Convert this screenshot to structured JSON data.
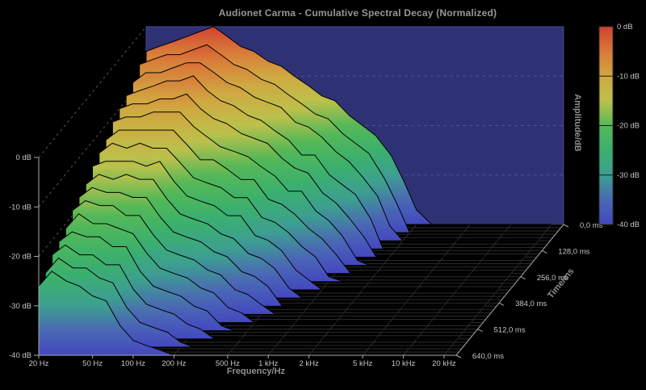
{
  "title": "Audionet Carma - Cumulative Spectral Decay (Normalized)",
  "colors": {
    "background": "#000000",
    "wall": "#2e3274",
    "wall_border": "#45488c",
    "wall_grid": "#565a9e",
    "side_grid": "#555555",
    "floor_grid": "#2b2b2b",
    "axis_line": "#a8a8a8",
    "tick_text": "#c6c6c6",
    "axis_title": "#8f8f8f",
    "slice_stroke": "#000000",
    "colorbar_divider": "#1a1a1a"
  },
  "axes": {
    "amplitude": {
      "label": "Amplitude/dB",
      "tick_labels": [
        "0 dB",
        "-10 dB",
        "-20 dB",
        "-30 dB",
        "-40 dB"
      ]
    },
    "frequency": {
      "label": "Frequency/Hz",
      "tick_labels": [
        "20 Hz",
        "50 Hz",
        "100 Hz",
        "200 Hz",
        "500 Hz",
        "1 kHz",
        "2 kHz",
        "5 kHz",
        "10 kHz",
        "20 kHz"
      ]
    },
    "time": {
      "label": "Time/ms",
      "tick_labels": [
        "0,0 ms",
        "128,0 ms",
        "256,0 ms",
        "384,0 ms",
        "512,0 ms",
        "640,0 ms"
      ]
    }
  },
  "colorbar": {
    "tick_labels": [
      "0 dB",
      "-10 dB",
      "-20 dB",
      "-30 dB",
      "-40 dB"
    ]
  },
  "chart_data": {
    "type": "surface",
    "subtype": "cumulative-spectral-decay-waterfall",
    "title": "Audionet Carma - Cumulative Spectral Decay (Normalized)",
    "xlabel": "Frequency/Hz",
    "ylabel": "Time/ms",
    "zlabel": "Amplitude/dB",
    "x_scale": "log",
    "xlim": [
      20,
      20000
    ],
    "ylim": [
      0,
      640
    ],
    "zlim": [
      -40,
      0
    ],
    "freq_ticks_hz": [
      20,
      50,
      100,
      200,
      500,
      1000,
      2000,
      5000,
      10000,
      20000
    ],
    "time_ticks_ms": [
      0,
      128,
      256,
      384,
      512,
      640
    ],
    "amp_ticks_db": [
      0,
      -10,
      -20,
      -30,
      -40
    ],
    "freq_hz": [
      20,
      25,
      32,
      40,
      50,
      63,
      80,
      100,
      125,
      160,
      200,
      250,
      320,
      400,
      500,
      640,
      800,
      1000,
      1300,
      1600,
      2000,
      2600,
      5000,
      20000
    ],
    "time_ms": [
      0,
      40,
      80,
      120,
      160,
      200,
      240,
      280,
      320,
      360,
      400,
      440,
      480,
      520,
      560,
      600,
      640
    ],
    "levels_db": [
      [
        -5,
        -4,
        -3,
        -2,
        -1,
        0,
        -2,
        -4,
        -5,
        -7,
        -8,
        -10,
        -12,
        -14,
        -15,
        -18,
        -20,
        -22,
        -26,
        -31,
        -37,
        -40,
        -40,
        -40
      ],
      [
        -6,
        -5,
        -4,
        -4,
        -3,
        -2,
        -4,
        -6,
        -7,
        -9,
        -10,
        -12,
        -14,
        -16,
        -17,
        -20,
        -22,
        -24,
        -29,
        -34,
        -40,
        -40,
        -40,
        -40
      ],
      [
        -8,
        -6,
        -6,
        -5,
        -4,
        -4,
        -6,
        -8,
        -9,
        -11,
        -12,
        -13,
        -16,
        -17,
        -19,
        -22,
        -24,
        -27,
        -31,
        -37,
        -40,
        -40,
        -40,
        -40
      ],
      [
        -9,
        -8,
        -7,
        -6,
        -6,
        -5,
        -8,
        -10,
        -11,
        -13,
        -14,
        -16,
        -18,
        -21,
        -21,
        -25,
        -27,
        -29,
        -34,
        -40,
        -40,
        -40,
        -40,
        -40
      ],
      [
        -10,
        -9,
        -9,
        -8,
        -8,
        -7,
        -10,
        -12,
        -13,
        -15,
        -16,
        -17,
        -20,
        -22,
        -23,
        -27,
        -29,
        -32,
        -36,
        -40,
        -40,
        -40,
        -40,
        -40
      ],
      [
        -11,
        -10,
        -10,
        -9,
        -9,
        -9,
        -12,
        -14,
        -16,
        -17,
        -18,
        -20,
        -22,
        -25,
        -25,
        -29,
        -31,
        -34,
        -39,
        -40,
        -40,
        -40,
        -40,
        -40
      ],
      [
        -13,
        -11,
        -11,
        -11,
        -11,
        -11,
        -14,
        -17,
        -17,
        -19,
        -21,
        -21,
        -25,
        -26,
        -28,
        -31,
        -33,
        -36,
        -40,
        -40,
        -40,
        -40,
        -40,
        -40
      ],
      [
        -14,
        -12,
        -13,
        -12,
        -13,
        -13,
        -16,
        -19,
        -20,
        -21,
        -23,
        -23,
        -27,
        -28,
        -30,
        -33,
        -35,
        -39,
        -40,
        -40,
        -40,
        -40,
        -40,
        -40
      ],
      [
        -15,
        -14,
        -14,
        -14,
        -15,
        -14,
        -18,
        -21,
        -22,
        -23,
        -25,
        -25,
        -29,
        -30,
        -32,
        -36,
        -38,
        -40,
        -40,
        -40,
        -40,
        -40,
        -40,
        -40
      ],
      [
        -17,
        -15,
        -16,
        -15,
        -16,
        -16,
        -20,
        -23,
        -24,
        -25,
        -27,
        -28,
        -31,
        -32,
        -34,
        -38,
        -40,
        -40,
        -40,
        -40,
        -40,
        -40,
        -40,
        -40
      ],
      [
        -18,
        -16,
        -17,
        -17,
        -18,
        -18,
        -22,
        -25,
        -26,
        -27,
        -29,
        -30,
        -33,
        -34,
        -36,
        -40,
        -40,
        -40,
        -40,
        -40,
        -40,
        -40,
        -40,
        -40
      ],
      [
        -19,
        -17,
        -18,
        -18,
        -20,
        -20,
        -24,
        -27,
        -28,
        -29,
        -31,
        -32,
        -35,
        -36,
        -38,
        -40,
        -40,
        -40,
        -40,
        -40,
        -40,
        -40,
        -40,
        -40
      ],
      [
        -21,
        -18,
        -20,
        -20,
        -21,
        -22,
        -26,
        -29,
        -30,
        -31,
        -33,
        -34,
        -37,
        -38,
        -40,
        -40,
        -40,
        -40,
        -40,
        -40,
        -40,
        -40,
        -40,
        -40
      ],
      [
        -22,
        -20,
        -21,
        -21,
        -23,
        -23,
        -28,
        -31,
        -32,
        -33,
        -35,
        -36,
        -39,
        -40,
        -40,
        -40,
        -40,
        -40,
        -40,
        -40,
        -40,
        -40,
        -40,
        -40
      ],
      [
        -23,
        -21,
        -23,
        -23,
        -25,
        -25,
        -30,
        -33,
        -34,
        -35,
        -37,
        -38,
        -40,
        -40,
        -40,
        -40,
        -40,
        -40,
        -40,
        -40,
        -40,
        -40,
        -40,
        -40
      ],
      [
        -25,
        -22,
        -24,
        -24,
        -26,
        -27,
        -32,
        -35,
        -36,
        -37,
        -39,
        -40,
        -40,
        -40,
        -40,
        -40,
        -40,
        -40,
        -40,
        -40,
        -40,
        -40,
        -40,
        -40
      ],
      [
        -26,
        -23,
        -25,
        -26,
        -28,
        -29,
        -34,
        -37,
        -38,
        -39,
        -40,
        -40,
        -40,
        -40,
        -40,
        -40,
        -40,
        -40,
        -40,
        -40,
        -40,
        -40,
        -40,
        -40
      ]
    ],
    "colormap": [
      {
        "db": 0,
        "color": "#d04230"
      },
      {
        "db": -5,
        "color": "#d97939"
      },
      {
        "db": -10,
        "color": "#d0a841"
      },
      {
        "db": -15,
        "color": "#bcc14b"
      },
      {
        "db": -20,
        "color": "#55b857"
      },
      {
        "db": -25,
        "color": "#3bb06d"
      },
      {
        "db": -30,
        "color": "#3d9f90"
      },
      {
        "db": -35,
        "color": "#4a69b4"
      },
      {
        "db": -40,
        "color": "#4447c0"
      }
    ],
    "grid": true,
    "legend_position": "right-colorbar"
  }
}
